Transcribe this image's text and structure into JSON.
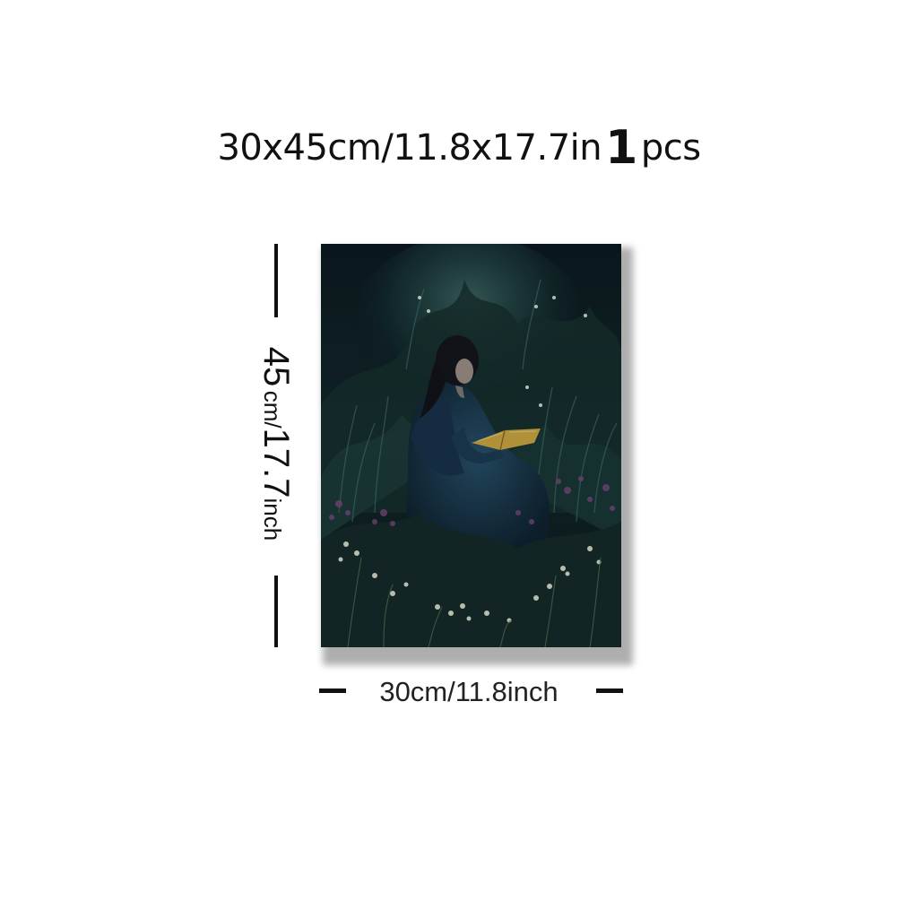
{
  "headline": {
    "size_prefix": "30x45cm/11.8x17.7in",
    "quantity": "1",
    "quantity_unit": "pcs"
  },
  "dimensions": {
    "height_number": "45",
    "height_unit_small": "cm/",
    "height_imperial": "17.7",
    "height_inch": "inch",
    "width_label": "30cm/11.8inch"
  },
  "artwork": {
    "subject": "woman-reading-book-in-night-garden",
    "colors": {
      "background": "#0f2026",
      "foliage": "#1d3a3a",
      "dress": "#1c3a4a",
      "hair": "#14161c",
      "skin": "#c9b7a8",
      "book": "#c9a441",
      "flowers_white": "#e6ecd8",
      "flowers_purple": "#7a4a7e"
    }
  }
}
